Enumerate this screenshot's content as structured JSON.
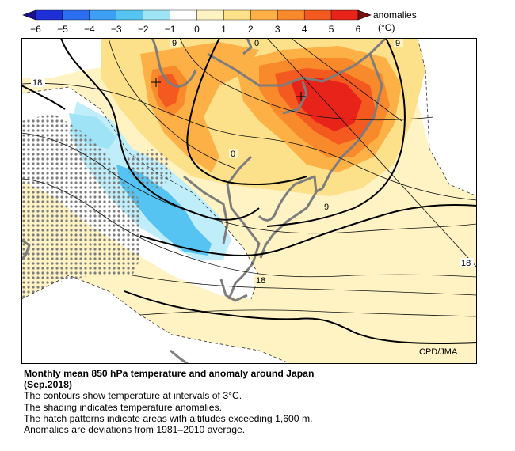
{
  "legend": {
    "unit_title": "anomalies",
    "unit": "(°C)",
    "ticks": [
      "−6",
      "−5",
      "−4",
      "−3",
      "−2",
      "−1",
      "0",
      "1",
      "2",
      "3",
      "4",
      "5",
      "6"
    ],
    "colors": [
      "#1e2fd6",
      "#2b6ff0",
      "#3ea0f5",
      "#56c4f2",
      "#9fe3f7",
      "#ffffff",
      "#fff3c4",
      "#fde08a",
      "#fcb045",
      "#f98a2c",
      "#f45a1f",
      "#e8231a"
    ]
  },
  "map": {
    "credit": "CPD/JMA",
    "contour_labels": [
      {
        "id": "lbl-9-top-left",
        "text": "9"
      },
      {
        "id": "lbl-0-top",
        "text": "0"
      },
      {
        "id": "lbl-9-top-right",
        "text": "9"
      },
      {
        "id": "lbl-18-left",
        "text": "18"
      },
      {
        "id": "lbl-0-center",
        "text": "0"
      },
      {
        "id": "lbl-9-right",
        "text": "9"
      },
      {
        "id": "lbl-18-right",
        "text": "18"
      },
      {
        "id": "lbl-18-bottom",
        "text": "18"
      }
    ]
  },
  "caption": {
    "title_line1": "Monthly mean 850 hPa temperature and anomaly around Japan",
    "title_line2": "(Sep.2018)",
    "line1": "The contours show temperature at intervals of 3°C.",
    "line2": "The shading indicates temperature anomalies.",
    "line3": "The hatch patterns indicate areas with altitudes exceeding 1,600 m.",
    "line4": "Anomalies are deviations from 1981–2010 average."
  }
}
